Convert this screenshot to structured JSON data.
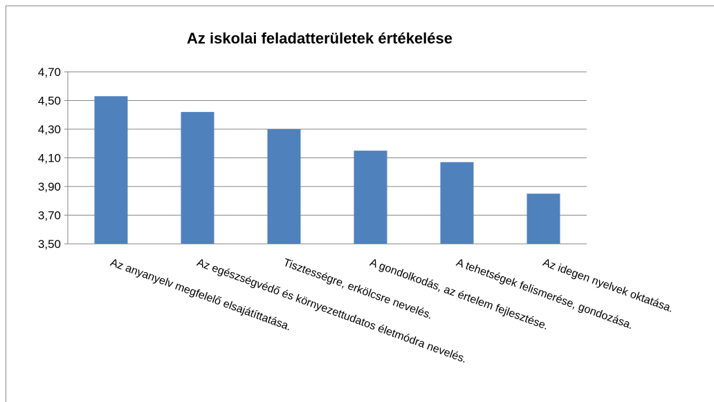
{
  "chart_data": {
    "type": "bar",
    "title": "Az iskolai feladatterületek értékelése",
    "categories": [
      "Az anyanyelv megfelelő elsajátíttatása.",
      "Az egészségvédő és környezettudatos életmódra nevelés.",
      "Tisztességre, erkölcsre nevelés.",
      "A gondolkodás, az értelem fejlesztése.",
      "A tehetségek felismerése, gondozása.",
      "Az idegen nyelvek oktatása."
    ],
    "values": [
      4.53,
      4.42,
      4.3,
      4.15,
      4.07,
      3.85
    ],
    "color": "#4f81bd",
    "ylim": [
      3.5,
      4.7
    ],
    "yticks": [
      {
        "value": 3.5,
        "label": "3,50"
      },
      {
        "value": 3.7,
        "label": "3,70"
      },
      {
        "value": 3.9,
        "label": "3,90"
      },
      {
        "value": 4.1,
        "label": "4,10"
      },
      {
        "value": 4.3,
        "label": "4,30"
      },
      {
        "value": 4.5,
        "label": "4,50"
      },
      {
        "value": 4.7,
        "label": "4,70"
      }
    ],
    "grid": true
  }
}
